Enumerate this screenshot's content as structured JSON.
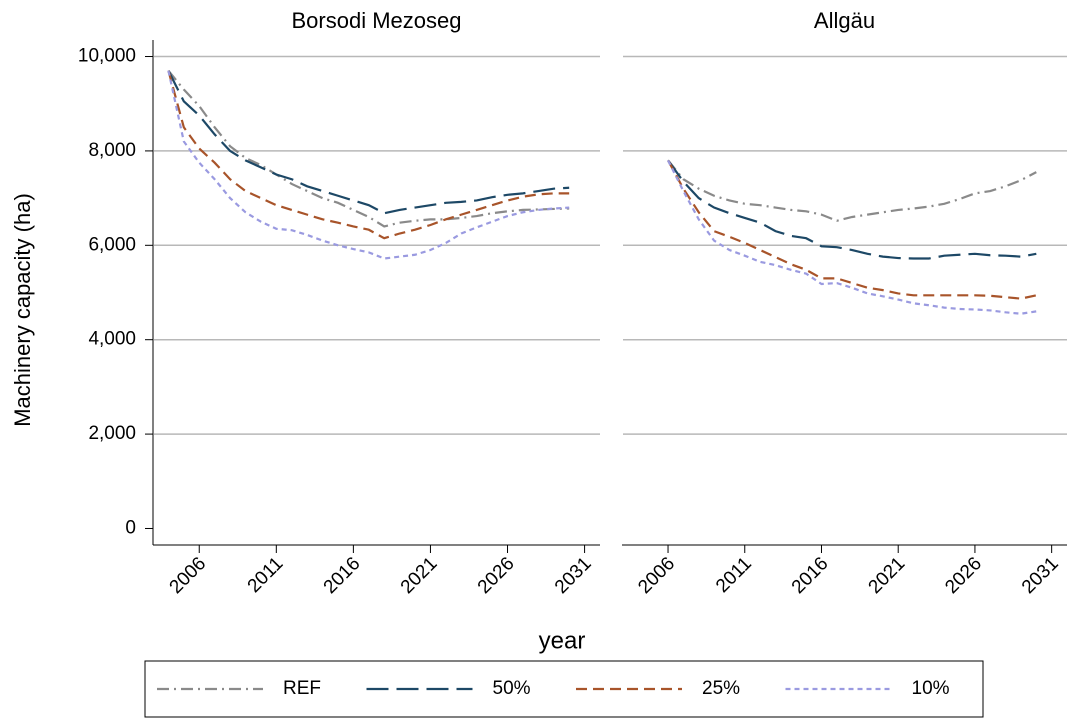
{
  "chart_data": {
    "type": "line",
    "ylabel": "Machinery capacity (ha)",
    "xlabel": "year",
    "ylim": [
      -350,
      10350
    ],
    "yticks": [
      0,
      {
        "value": 2000,
        "label": "2,000"
      },
      {
        "value": 4000,
        "label": "4,000"
      },
      {
        "value": 6000,
        "label": "6,000"
      },
      {
        "value": 8000,
        "label": "8,000"
      },
      {
        "value": 10000,
        "label": "10,000"
      }
    ],
    "xlim": [
      2003,
      2032
    ],
    "xticks": [
      2006,
      2011,
      2016,
      2021,
      2026,
      2031
    ],
    "grid": true,
    "series": [
      {
        "name": "REF",
        "color": "#8a8a8a",
        "dash": "dashdot"
      },
      {
        "name": "50%",
        "color": "#1d4866",
        "dash": "longdash"
      },
      {
        "name": "25%",
        "color": "#a8542a",
        "dash": "dash"
      },
      {
        "name": "10%",
        "color": "#9a9ae0",
        "dash": "shortdash"
      }
    ],
    "panels": [
      {
        "title": "Borsodi Mezoseg",
        "x": [
          2004,
          2005,
          2006,
          2007,
          2008,
          2009,
          2010,
          2011,
          2012,
          2013,
          2014,
          2015,
          2016,
          2017,
          2018,
          2019,
          2020,
          2021,
          2022,
          2023,
          2024,
          2025,
          2026,
          2027,
          2028,
          2029,
          2030
        ],
        "series": [
          {
            "values": [
              9700,
              9300,
              8950,
              8500,
              8100,
              7850,
              7700,
              7500,
              7300,
              7150,
              7000,
              6900,
              6750,
              6600,
              6400,
              6480,
              6520,
              6550,
              6550,
              6580,
              6620,
              6680,
              6720,
              6750,
              6760,
              6770,
              6780
            ]
          },
          {
            "values": [
              9700,
              9050,
              8750,
              8350,
              8000,
              7800,
              7650,
              7500,
              7400,
              7250,
              7150,
              7050,
              6950,
              6850,
              6680,
              6750,
              6800,
              6850,
              6900,
              6920,
              6950,
              7020,
              7070,
              7100,
              7150,
              7200,
              7220
            ]
          },
          {
            "values": [
              9700,
              8500,
              8050,
              7750,
              7400,
              7150,
              7000,
              6850,
              6750,
              6650,
              6550,
              6480,
              6400,
              6330,
              6150,
              6250,
              6330,
              6430,
              6550,
              6650,
              6750,
              6850,
              6950,
              7030,
              7080,
              7100,
              7100
            ]
          },
          {
            "values": [
              9700,
              8200,
              7750,
              7400,
              7000,
              6700,
              6500,
              6350,
              6320,
              6220,
              6100,
              6000,
              5920,
              5850,
              5720,
              5760,
              5800,
              5900,
              6050,
              6250,
              6380,
              6500,
              6620,
              6700,
              6750,
              6780,
              6800
            ]
          }
        ]
      },
      {
        "title": "Allgäu",
        "x": [
          2006,
          2007,
          2008,
          2009,
          2010,
          2011,
          2012,
          2013,
          2014,
          2015,
          2016,
          2017,
          2018,
          2019,
          2020,
          2021,
          2022,
          2023,
          2024,
          2025,
          2026,
          2027,
          2028,
          2029,
          2030
        ],
        "series": [
          {
            "values": [
              7800,
              7400,
              7200,
              7050,
              6950,
              6880,
              6850,
              6800,
              6750,
              6720,
              6650,
              6520,
              6600,
              6650,
              6700,
              6750,
              6780,
              6820,
              6880,
              6980,
              7100,
              7150,
              7250,
              7380,
              7550
            ]
          },
          {
            "values": [
              7800,
              7350,
              7000,
              6800,
              6680,
              6580,
              6480,
              6300,
              6200,
              6150,
              5980,
              5960,
              5900,
              5820,
              5760,
              5730,
              5720,
              5720,
              5780,
              5800,
              5820,
              5790,
              5780,
              5760,
              5820
            ]
          },
          {
            "values": [
              7800,
              7200,
              6700,
              6300,
              6180,
              6050,
              5900,
              5750,
              5600,
              5480,
              5300,
              5300,
              5200,
              5100,
              5050,
              4980,
              4940,
              4940,
              4940,
              4940,
              4940,
              4930,
              4900,
              4870,
              4940
            ]
          },
          {
            "values": [
              7800,
              7150,
              6550,
              6100,
              5900,
              5780,
              5650,
              5580,
              5480,
              5400,
              5180,
              5200,
              5100,
              4980,
              4920,
              4850,
              4770,
              4730,
              4680,
              4650,
              4640,
              4620,
              4580,
              4550,
              4600
            ]
          }
        ]
      }
    ]
  }
}
